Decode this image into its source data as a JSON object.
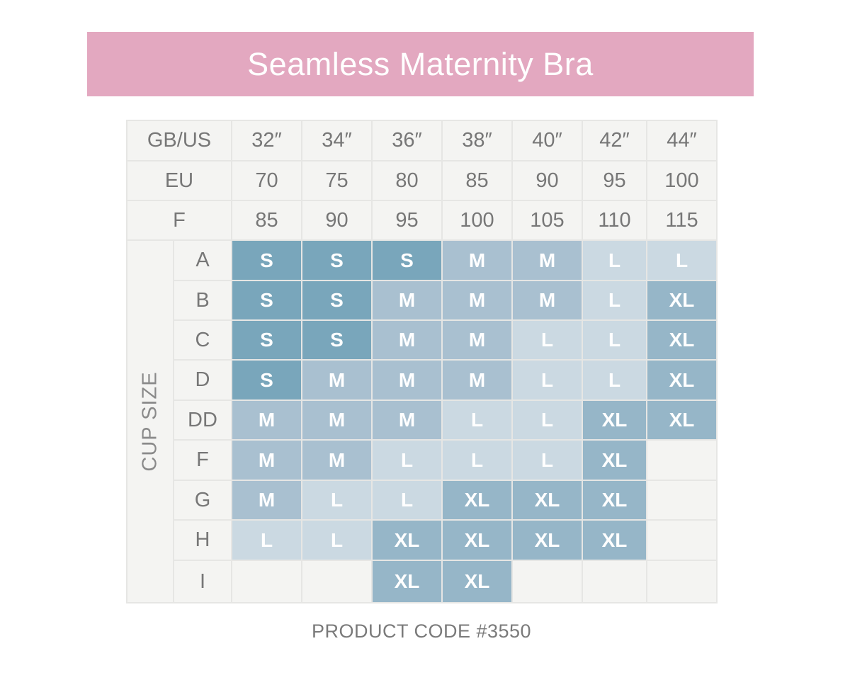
{
  "title": "Seamless Maternity Bra",
  "product_code": "PRODUCT CODE #3550",
  "colors": {
    "banner": "#e3a8c0",
    "S": "#79a6bb",
    "M": "#a9c0d0",
    "L": "#cbd9e2",
    "XL": "#96b6c8",
    "empty": "#f4f4f2",
    "label_text": "#777777"
  },
  "band_rows": [
    {
      "label": "GB/US",
      "values": [
        "32″",
        "34″",
        "36″",
        "38″",
        "40″",
        "42″",
        "44″"
      ]
    },
    {
      "label": "EU",
      "values": [
        "70",
        "75",
        "80",
        "85",
        "90",
        "95",
        "100"
      ]
    },
    {
      "label": "F",
      "values": [
        "85",
        "90",
        "95",
        "100",
        "105",
        "110",
        "115"
      ]
    }
  ],
  "cup_label": "CUP SIZE",
  "cup_rows": [
    {
      "cup": "A",
      "sizes": [
        "S",
        "S",
        "S",
        "M",
        "M",
        "L",
        "L"
      ]
    },
    {
      "cup": "B",
      "sizes": [
        "S",
        "S",
        "M",
        "M",
        "M",
        "L",
        "XL"
      ]
    },
    {
      "cup": "C",
      "sizes": [
        "S",
        "S",
        "M",
        "M",
        "L",
        "L",
        "XL"
      ]
    },
    {
      "cup": "D",
      "sizes": [
        "S",
        "M",
        "M",
        "M",
        "L",
        "L",
        "XL"
      ]
    },
    {
      "cup": "DD",
      "sizes": [
        "M",
        "M",
        "M",
        "L",
        "L",
        "XL",
        "XL"
      ]
    },
    {
      "cup": "F",
      "sizes": [
        "M",
        "M",
        "L",
        "L",
        "L",
        "XL",
        ""
      ]
    },
    {
      "cup": "G",
      "sizes": [
        "M",
        "L",
        "L",
        "XL",
        "XL",
        "XL",
        ""
      ]
    },
    {
      "cup": "H",
      "sizes": [
        "L",
        "L",
        "XL",
        "XL",
        "XL",
        "XL",
        ""
      ]
    },
    {
      "cup": "I",
      "sizes": [
        "",
        "",
        "XL",
        "XL",
        "",
        "",
        ""
      ]
    }
  ]
}
